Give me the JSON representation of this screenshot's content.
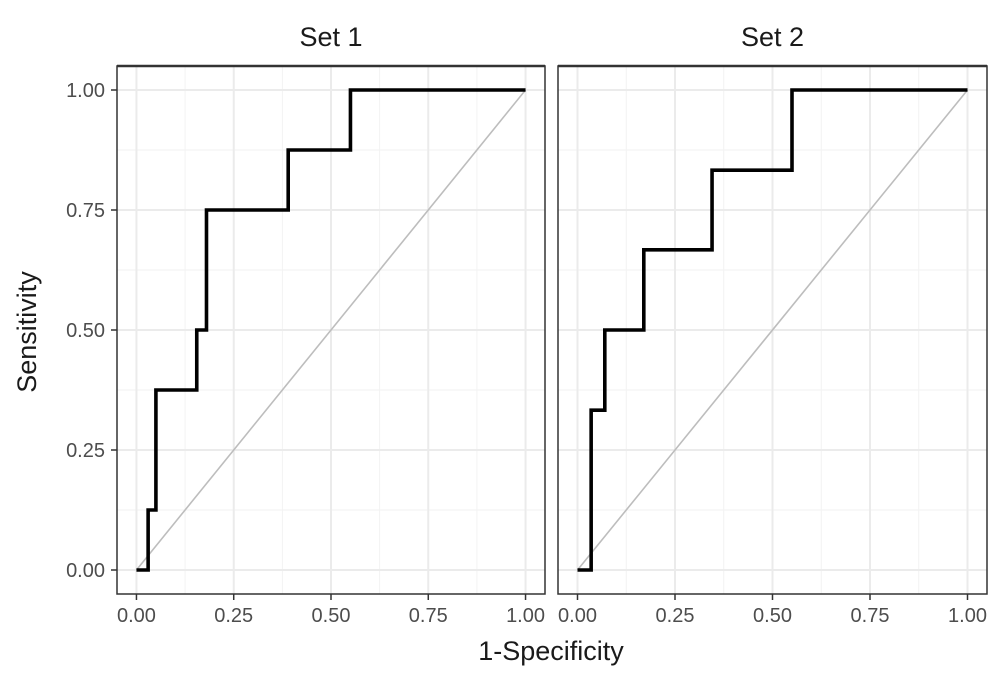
{
  "chart_data": {
    "type": "line",
    "xlabel": "1-Specificity",
    "ylabel": "Sensitivity",
    "xlim": [
      0,
      1
    ],
    "ylim": [
      0,
      1
    ],
    "x_ticks": [
      "0.00",
      "0.25",
      "0.50",
      "0.75",
      "1.00"
    ],
    "y_ticks": [
      "0.00",
      "0.25",
      "0.50",
      "0.75",
      "1.00"
    ],
    "grid": true,
    "reference_line": "diagonal",
    "colors": {
      "roc": "#000000",
      "diagonal": "#bdbdbd",
      "grid": "#ebebeb",
      "frame": "#333333"
    },
    "panels": [
      {
        "title": "Set 1",
        "x": [
          0.0,
          0.03,
          0.03,
          0.05,
          0.05,
          0.155,
          0.155,
          0.18,
          0.18,
          0.39,
          0.39,
          0.55,
          0.55,
          1.0
        ],
        "y": [
          0.0,
          0.0,
          0.125,
          0.125,
          0.375,
          0.375,
          0.5,
          0.5,
          0.75,
          0.75,
          0.875,
          0.875,
          1.0,
          1.0
        ]
      },
      {
        "title": "Set 2",
        "x": [
          0.0,
          0.035,
          0.035,
          0.07,
          0.07,
          0.17,
          0.17,
          0.345,
          0.345,
          0.55,
          0.55,
          1.0
        ],
        "y": [
          0.0,
          0.0,
          0.333,
          0.333,
          0.5,
          0.5,
          0.667,
          0.667,
          0.833,
          0.833,
          1.0,
          1.0
        ]
      }
    ]
  }
}
